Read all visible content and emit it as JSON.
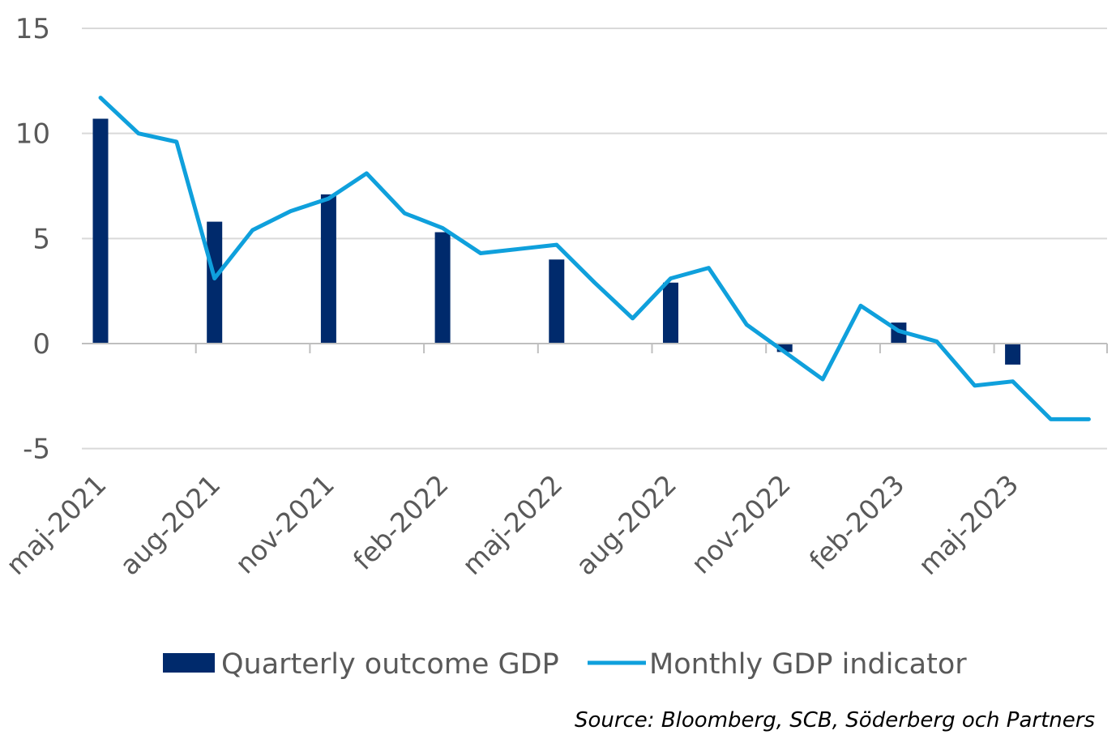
{
  "chart_data": {
    "type": "bar+line",
    "title": "",
    "xlabel": "",
    "ylabel": "",
    "ylim": [
      -5,
      15
    ],
    "yticks": [
      15,
      10,
      5,
      0,
      -5
    ],
    "grid": true,
    "legend_position": "bottom",
    "months": [
      "maj-2021",
      "jun-2021",
      "jul-2021",
      "aug-2021",
      "sep-2021",
      "okt-2021",
      "nov-2021",
      "dec-2021",
      "jan-2022",
      "feb-2022",
      "mar-2022",
      "apr-2022",
      "maj-2022",
      "jun-2022",
      "jul-2022",
      "aug-2022",
      "sep-2022",
      "okt-2022",
      "nov-2022",
      "dec-2022",
      "jan-2023",
      "feb-2023",
      "mar-2023",
      "apr-2023",
      "maj-2023",
      "jun-2023",
      "jul-2023"
    ],
    "x_tick_labels": [
      "maj-2021",
      "aug-2021",
      "nov-2021",
      "feb-2022",
      "maj-2022",
      "aug-2022",
      "nov-2022",
      "feb-2023",
      "maj-2023"
    ],
    "series": [
      {
        "name": "Quarterly outcome GDP",
        "kind": "bar",
        "color": "#002a6c",
        "points": [
          {
            "x": "maj-2021",
            "y": 10.7
          },
          {
            "x": "aug-2021",
            "y": 5.8
          },
          {
            "x": "nov-2021",
            "y": 7.1
          },
          {
            "x": "feb-2022",
            "y": 5.3
          },
          {
            "x": "maj-2022",
            "y": 4.0
          },
          {
            "x": "aug-2022",
            "y": 2.9
          },
          {
            "x": "nov-2022",
            "y": -0.4
          },
          {
            "x": "feb-2023",
            "y": 1.0
          },
          {
            "x": "maj-2023",
            "y": -1.0
          }
        ]
      },
      {
        "name": "Monthly GDP indicator",
        "kind": "line",
        "color": "#0fa0dc",
        "values": [
          11.7,
          10.0,
          9.6,
          3.1,
          5.4,
          6.3,
          6.9,
          8.1,
          6.2,
          5.5,
          4.3,
          4.5,
          4.7,
          2.9,
          1.2,
          3.1,
          3.6,
          0.9,
          -0.4,
          -1.7,
          1.8,
          0.6,
          0.1,
          -2.0,
          -1.8,
          -3.6,
          -3.6
        ]
      }
    ]
  },
  "source": "Source: Bloomberg, SCB, Söderberg och Partners"
}
